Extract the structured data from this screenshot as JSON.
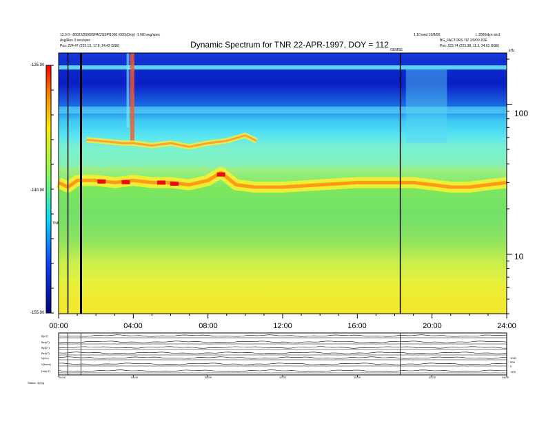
{
  "header": {
    "title": "Dynamic Spectrum for TNR 22-APR-1997, DOY = 112",
    "left_line1": "12.0.0 - 80022/2000/SPAC/SSP/1000 (000)(0nly) -1 fil/0 avg/spec",
    "left_line2": "Avg/Res 3 sec/spec",
    "left_line3": "Pos:    224.47 (223.13, 17.8, 24.42 GSE)",
    "right_line1": "1.10 wed 10/8/00",
    "right_line2": "BG_FACTORS  TIZ 2/9/00 JOE",
    "right_line3": "Pos:    223.74 (223.38, 11.3, 24.61 GSE)",
    "right_corner": "L 2000/dyn a/o1",
    "marker_label": "GEMSE",
    "khz_label": "kHz",
    "colorbar_title": "TNR"
  },
  "colorbar": {
    "ticks": [
      "-125.00",
      "-140.00",
      "-155.00"
    ]
  },
  "chart_data": {
    "type": "heatmap",
    "title": "Dynamic Spectrum for TNR 22-APR-1997, DOY = 112",
    "x_axis": {
      "label": "",
      "ticks": [
        "00:00",
        "04:00",
        "08:00",
        "12:00",
        "16:00",
        "20:00",
        "24:00"
      ],
      "range_hours": [
        0,
        24
      ]
    },
    "y_axis": {
      "label": "kHz",
      "scale": "log",
      "ticks": [
        "100",
        "10"
      ],
      "range_khz": [
        4,
        220
      ]
    },
    "color_scale": {
      "label": "TNR",
      "range": [
        -155,
        -125
      ],
      "ticks": [
        -125,
        -140,
        -155
      ]
    },
    "plasma_line": {
      "time_hours": [
        0.0,
        0.5,
        1.0,
        2.0,
        3.0,
        4.0,
        5.0,
        6.0,
        7.0,
        8.0,
        8.7,
        9.5,
        10.5,
        12.0,
        14.0,
        16.0,
        18.0,
        19.0,
        20.0,
        21.0,
        22.0,
        23.0,
        24.0
      ],
      "freq_khz": [
        30,
        28,
        31,
        31,
        30,
        31,
        30,
        30,
        29,
        31,
        35,
        29,
        28,
        28,
        29,
        30,
        30,
        30,
        29,
        28,
        28,
        29,
        30
      ]
    },
    "upper_band": {
      "time_hours": [
        1.5,
        3.5,
        4.0,
        5.0,
        6.0,
        7.0,
        8.0,
        9.0,
        10.0,
        10.6
      ],
      "freq_khz": [
        58,
        55,
        55,
        53,
        55,
        52,
        55,
        57,
        62,
        57
      ]
    },
    "vertical_markers_hours": [
      0.5,
      1.2,
      18.3
    ]
  },
  "strips": {
    "labels": [
      "B(nT)",
      "Bx(nT)",
      "By(nT)",
      "Bz(nT)",
      "N(/cc)",
      "V(km/s)",
      "Dst(nT)"
    ],
    "right_ticks": [
      "1000",
      "500",
      "0",
      "-500"
    ],
    "time_ticks": [
      "00:00",
      "04:00",
      "08:00",
      "12:00",
      "16:00",
      "20:00",
      "24:00"
    ],
    "footer": "Status: 4(x)tg"
  },
  "colors": {
    "frame": "#000000",
    "background": "#ffffff"
  }
}
